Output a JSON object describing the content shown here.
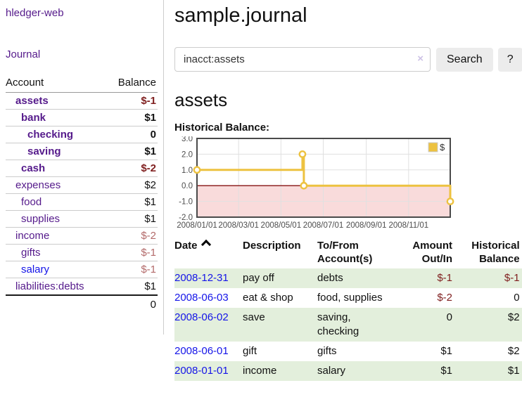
{
  "app": {
    "brand": "hledger-web",
    "nav_journal": "Journal"
  },
  "sidebar": {
    "accounts_header": {
      "account": "Account",
      "balance": "Balance"
    },
    "accounts": [
      {
        "name": "assets",
        "indent": 0,
        "matched": true,
        "balance": "$-1",
        "neg": "strong"
      },
      {
        "name": "bank",
        "indent": 1,
        "matched": true,
        "balance": "$1"
      },
      {
        "name": "checking",
        "indent": 2,
        "matched": true,
        "balance": "0"
      },
      {
        "name": "saving",
        "indent": 2,
        "matched": true,
        "balance": "$1"
      },
      {
        "name": "cash",
        "indent": 1,
        "matched": true,
        "balance": "$-2",
        "neg": "strong"
      },
      {
        "name": "expenses",
        "indent": 0,
        "matched": false,
        "balance": "$2"
      },
      {
        "name": "food",
        "indent": 1,
        "matched": false,
        "balance": "$1"
      },
      {
        "name": "supplies",
        "indent": 1,
        "matched": false,
        "balance": "$1"
      },
      {
        "name": "income",
        "indent": 0,
        "matched": false,
        "balance": "$-2",
        "neg": "soft"
      },
      {
        "name": "gifts",
        "indent": 1,
        "matched": false,
        "balance": "$-1",
        "neg": "soft"
      },
      {
        "name": "salary",
        "indent": 1,
        "matched": false,
        "balance": "$-1",
        "neg": "soft",
        "unvisited": true
      },
      {
        "name": "liabilities:debts",
        "indent": 0,
        "matched": false,
        "balance": "$1"
      }
    ],
    "total": "0"
  },
  "header": {
    "title": "sample.journal"
  },
  "search": {
    "value": "inacct:assets",
    "clear_icon": "×",
    "button": "Search",
    "help": "?"
  },
  "main": {
    "heading": "assets",
    "chart_label": "Historical Balance:"
  },
  "chart_data": {
    "type": "line",
    "subtype": "step-after",
    "title": "Historical Balance",
    "series": [
      {
        "name": "$",
        "color": "#edc240",
        "points": [
          [
            "2008-01-01",
            1.0
          ],
          [
            "2008-06-01",
            2.0
          ],
          [
            "2008-06-03",
            0.0
          ],
          [
            "2008-12-31",
            -1.0
          ]
        ]
      }
    ],
    "x_domain": [
      "2008-01-01",
      "2008-12-31"
    ],
    "x_ticks": [
      {
        "date": "2008-01-01",
        "label": "2008/01/01"
      },
      {
        "date": "2008-03-01",
        "label": "2008/03/01"
      },
      {
        "date": "2008-05-01",
        "label": "2008/05/01"
      },
      {
        "date": "2008-07-01",
        "label": "2008/07/01"
      },
      {
        "date": "2008-09-01",
        "label": "2008/09/01"
      },
      {
        "date": "2008-11-01",
        "label": "2008/11/01"
      }
    ],
    "y_ticks": [
      {
        "v": 3,
        "label": "3.0"
      },
      {
        "v": 2,
        "label": "2.0"
      },
      {
        "v": 1,
        "label": "1.0"
      },
      {
        "v": 0,
        "label": "0.0"
      },
      {
        "v": -1,
        "label": "-1.0"
      },
      {
        "v": -2,
        "label": "-2.0"
      }
    ],
    "ylim": [
      -2,
      3
    ],
    "grid": true,
    "legend_position": "top-right",
    "legend_label": "$",
    "line_color": "#edc240",
    "negative_region_color": "#f9dbdb",
    "zero_line_color": "#871111"
  },
  "table": {
    "headers": [
      {
        "lines": [
          "Date"
        ],
        "sort": "asc",
        "align": "left"
      },
      {
        "lines": [
          "Description"
        ],
        "align": "left"
      },
      {
        "lines": [
          "To/From",
          "Account(s)"
        ],
        "align": "left"
      },
      {
        "lines": [
          "Amount",
          "Out/In"
        ],
        "align": "right"
      },
      {
        "lines": [
          "Historical",
          "Balance"
        ],
        "align": "right"
      }
    ],
    "rows": [
      {
        "date": "2008-12-31",
        "description": "pay off",
        "accounts": "debts",
        "amount": "$-1",
        "amount_neg": true,
        "balance": "$-1",
        "balance_neg": true
      },
      {
        "date": "2008-06-03",
        "description": "eat & shop",
        "accounts": "food, supplies",
        "amount": "$-2",
        "amount_neg": true,
        "balance": "0",
        "balance_neg": false
      },
      {
        "date": "2008-06-02",
        "description": "save",
        "accounts": "saving, checking",
        "amount": "0",
        "amount_neg": false,
        "balance": "$2",
        "balance_neg": false
      },
      {
        "date": "2008-06-01",
        "description": "gift",
        "accounts": "gifts",
        "amount": "$1",
        "amount_neg": false,
        "balance": "$2",
        "balance_neg": false
      },
      {
        "date": "2008-01-01",
        "description": "income",
        "accounts": "salary",
        "amount": "$1",
        "amount_neg": false,
        "balance": "$1",
        "balance_neg": false
      }
    ]
  }
}
